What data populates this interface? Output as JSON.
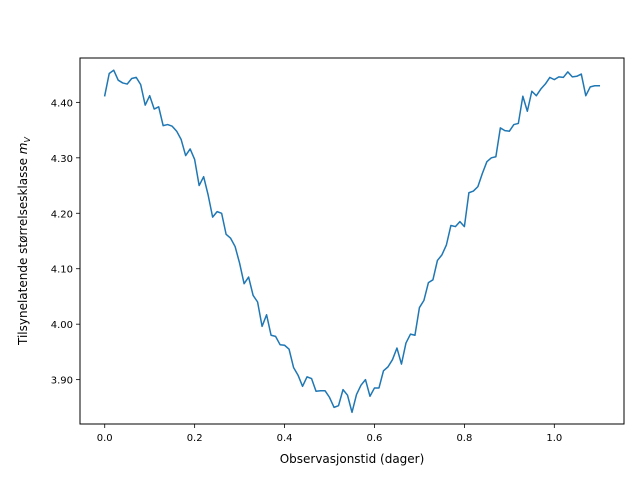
{
  "chart_data": {
    "type": "line",
    "title": "",
    "xlabel": "Observasjonstid (dager)",
    "ylabel_text": "Tilsynelatende størrelsesklasse ",
    "ylabel_symbol": "m",
    "ylabel_subscript": "V",
    "xlim": [
      -0.055,
      1.155
    ],
    "ylim": [
      3.82,
      4.48
    ],
    "x_ticks": [
      0.0,
      0.2,
      0.4,
      0.6,
      0.8,
      1.0
    ],
    "x_tick_labels": [
      "0.0",
      "0.2",
      "0.4",
      "0.6",
      "0.8",
      "1.0"
    ],
    "y_ticks": [
      3.9,
      4.0,
      4.1,
      4.2,
      4.3,
      4.4
    ],
    "y_tick_labels": [
      "3.90",
      "4.00",
      "4.10",
      "4.20",
      "4.30",
      "4.40"
    ],
    "grid": false,
    "legend": false,
    "series": [
      {
        "color": "#1f77b4",
        "x": [
          0.0,
          0.01,
          0.02,
          0.03,
          0.04,
          0.05,
          0.06,
          0.07,
          0.08,
          0.09,
          0.1,
          0.11,
          0.12,
          0.13,
          0.14,
          0.15,
          0.16,
          0.17,
          0.18,
          0.19,
          0.2,
          0.21,
          0.22,
          0.23,
          0.24,
          0.25,
          0.26,
          0.27,
          0.28,
          0.29,
          0.3,
          0.31,
          0.32,
          0.33,
          0.34,
          0.35,
          0.36,
          0.37,
          0.38,
          0.39,
          0.4,
          0.41,
          0.42,
          0.43,
          0.44,
          0.45,
          0.46,
          0.47,
          0.48,
          0.49,
          0.5,
          0.51,
          0.52,
          0.53,
          0.54,
          0.55,
          0.56,
          0.57,
          0.58,
          0.59,
          0.6,
          0.61,
          0.62,
          0.63,
          0.64,
          0.65,
          0.66,
          0.67,
          0.68,
          0.69,
          0.7,
          0.71,
          0.72,
          0.73,
          0.74,
          0.75,
          0.76,
          0.77,
          0.78,
          0.79,
          0.8,
          0.81,
          0.82,
          0.83,
          0.84,
          0.85,
          0.86,
          0.87,
          0.88,
          0.89,
          0.9,
          0.91,
          0.92,
          0.93,
          0.94,
          0.95,
          0.96,
          0.97,
          0.98,
          0.99,
          1.0,
          1.01,
          1.02,
          1.03,
          1.04,
          1.05,
          1.06,
          1.07,
          1.08,
          1.09,
          1.1
        ],
        "y": [
          4.412,
          4.452,
          4.458,
          4.44,
          4.435,
          4.433,
          4.443,
          4.445,
          4.432,
          4.395,
          4.412,
          4.388,
          4.392,
          4.358,
          4.36,
          4.357,
          4.348,
          4.333,
          4.304,
          4.316,
          4.297,
          4.25,
          4.266,
          4.233,
          4.193,
          4.203,
          4.2,
          4.162,
          4.155,
          4.14,
          4.11,
          4.073,
          4.085,
          4.052,
          4.04,
          3.996,
          4.017,
          3.98,
          3.978,
          3.963,
          3.962,
          3.955,
          3.922,
          3.908,
          3.888,
          3.905,
          3.902,
          3.879,
          3.88,
          3.88,
          3.868,
          3.85,
          3.853,
          3.882,
          3.872,
          3.841,
          3.873,
          3.89,
          3.9,
          3.87,
          3.885,
          3.885,
          3.916,
          3.923,
          3.936,
          3.957,
          3.928,
          3.966,
          3.982,
          3.98,
          4.03,
          4.043,
          4.075,
          4.08,
          4.115,
          4.125,
          4.143,
          4.178,
          4.176,
          4.185,
          4.176,
          4.237,
          4.24,
          4.248,
          4.272,
          4.293,
          4.3,
          4.302,
          4.354,
          4.349,
          4.348,
          4.36,
          4.362,
          4.411,
          4.384,
          4.42,
          4.412,
          4.424,
          4.433,
          4.445,
          4.441,
          4.446,
          4.445,
          4.455,
          4.446,
          4.447,
          4.451,
          4.412,
          4.428,
          4.43,
          4.43
        ]
      }
    ]
  }
}
